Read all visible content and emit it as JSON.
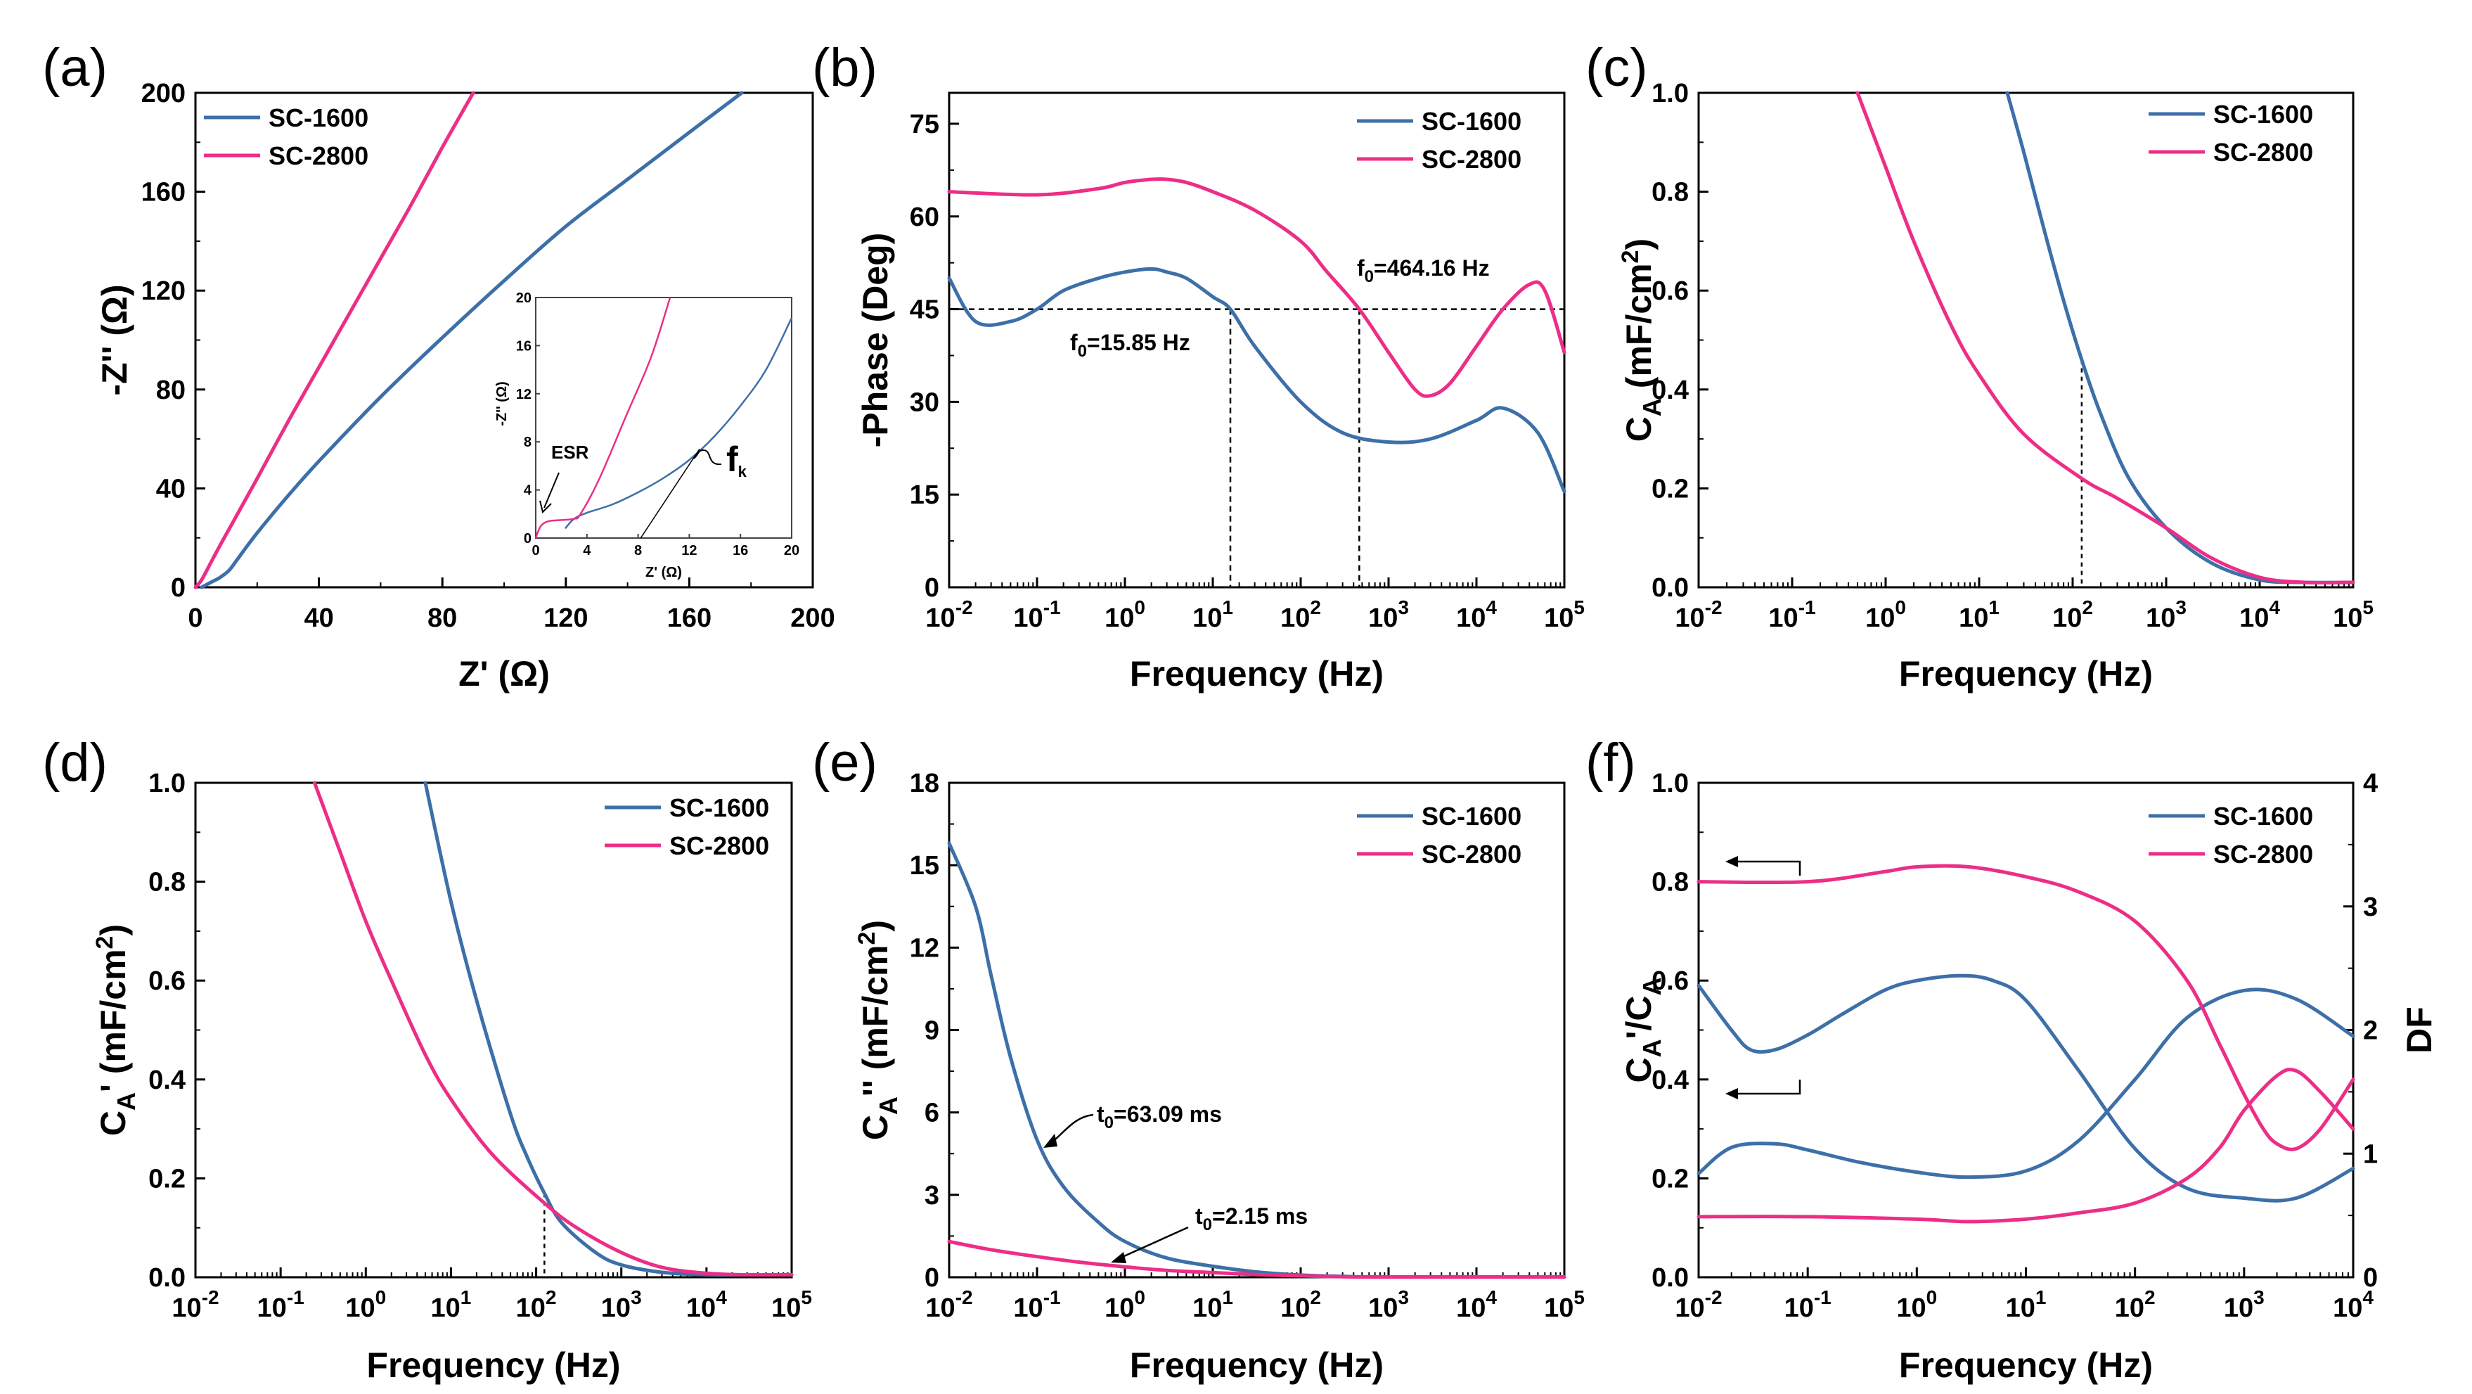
{
  "colors": {
    "SC-1600": "#3d6fa8",
    "SC-2800": "#ec2e86",
    "axis": "#000000",
    "guide": "#000000"
  },
  "chart_data": [
    {
      "panel": "(a)",
      "type": "line",
      "xlabel": "Z' (Ω)",
      "ylabel": "-Z'' (Ω)",
      "xlim": [
        0,
        200
      ],
      "ylim": [
        0,
        200
      ],
      "xticks": [
        "0",
        "40",
        "80",
        "120",
        "160",
        "200"
      ],
      "yticks": [
        "0",
        "40",
        "80",
        "120",
        "160",
        "200"
      ],
      "legend": "top-left",
      "series": [
        {
          "name": "SC-1600",
          "x": [
            2,
            5,
            8,
            11,
            14,
            20,
            30,
            40,
            60,
            80,
            100,
            120,
            140,
            160,
            177
          ],
          "y": [
            0,
            2,
            4,
            7,
            12,
            22,
            37,
            51,
            77,
            101,
            124,
            146,
            165,
            184,
            200
          ]
        },
        {
          "name": "SC-2800",
          "x": [
            0,
            2,
            5,
            8,
            12,
            20,
            30,
            40,
            50,
            60,
            70,
            80,
            90
          ],
          "y": [
            0,
            3,
            10,
            17,
            26,
            44,
            67,
            89,
            111,
            133,
            155,
            178,
            200
          ]
        }
      ],
      "inset": {
        "xlabel": "Z' (Ω)",
        "ylabel": "-Z'' (Ω)",
        "xlim": [
          0,
          20
        ],
        "ylim": [
          0,
          20
        ],
        "xticks": [
          "0",
          "4",
          "8",
          "12",
          "16",
          "20"
        ],
        "yticks": [
          "0",
          "4",
          "8",
          "12",
          "16",
          "20"
        ],
        "annotations": [
          "ESR",
          "f"
        ],
        "annotation_sub": "k",
        "series": [
          {
            "name": "SC-1600",
            "x": [
              2.3,
              3,
              4,
              6,
              8,
              10,
              12,
              14,
              16,
              18,
              20
            ],
            "y": [
              0.8,
              1.6,
              2.1,
              2.8,
              3.8,
              5,
              6.5,
              8.5,
              11,
              14,
              18.3
            ]
          },
          {
            "name": "SC-2800",
            "x": [
              0,
              0.4,
              1,
              2,
              3,
              3.5,
              5,
              7,
              9,
              10.5
            ],
            "y": [
              0,
              1,
              1.4,
              1.5,
              1.6,
              2,
              5,
              10,
              15,
              20
            ]
          }
        ]
      }
    },
    {
      "panel": "(b)",
      "type": "line",
      "xlabel": "Frequency (Hz)",
      "ylabel": "-Phase (Deg)",
      "xscale": "log",
      "xlim": [
        0.01,
        100000
      ],
      "ylim": [
        0,
        80
      ],
      "yticks": [
        "0",
        "15",
        "30",
        "45",
        "60",
        "75"
      ],
      "xticks_exp": [
        "-2",
        "-1",
        "0",
        "1",
        "2",
        "3",
        "4",
        "5"
      ],
      "legend": "top-right",
      "annotations": [
        {
          "main": "f",
          "sub": "0",
          "rest": "=15.85 Hz",
          "x": 15.85,
          "y": 45
        },
        {
          "main": "f",
          "sub": "0",
          "rest": "=464.16 Hz",
          "x": 464.16,
          "y": 45
        }
      ],
      "series": [
        {
          "name": "SC-1600",
          "x": [
            0.01,
            0.02,
            0.05,
            0.1,
            0.2,
            0.5,
            1,
            2,
            3,
            5,
            10,
            15.85,
            30,
            100,
            300,
            1000,
            3000,
            10000,
            20000,
            50000,
            100000
          ],
          "y": [
            50,
            43,
            43,
            45,
            48,
            50,
            51,
            51.5,
            51,
            50,
            47,
            45,
            39,
            30,
            25,
            23.5,
            24,
            27,
            29,
            25,
            15.5
          ]
        },
        {
          "name": "SC-2800",
          "x": [
            0.01,
            0.1,
            0.5,
            1,
            2,
            3,
            5,
            10,
            30,
            100,
            200,
            464.16,
            1000,
            2000,
            3000,
            5000,
            10000,
            20000,
            40000,
            60000,
            100000
          ],
          "y": [
            64,
            63.5,
            64.5,
            65.5,
            66,
            66,
            65.5,
            64,
            61,
            56,
            51,
            45,
            38,
            32,
            31,
            33,
            39,
            45,
            49,
            48,
            38
          ]
        }
      ]
    },
    {
      "panel": "(c)",
      "type": "line",
      "xlabel": "Frequency (Hz)",
      "ylabel": "C",
      "ylabel_sub": "A",
      "ylabel_rest": " (mF/cm",
      "ylabel_sup": "2",
      "ylabel_close": ")",
      "xscale": "log",
      "xlim": [
        0.01,
        100000
      ],
      "ylim": [
        0,
        1
      ],
      "yticks": [
        "0.0",
        "0.2",
        "0.4",
        "0.6",
        "0.8",
        "1.0"
      ],
      "xticks_exp": [
        "-2",
        "-1",
        "0",
        "1",
        "2",
        "3",
        "4",
        "5"
      ],
      "legend": "top-right",
      "guide_x": 125,
      "series": [
        {
          "name": "SC-1600",
          "x": [
            20,
            30,
            50,
            80,
            125,
            200,
            400,
            1000,
            3000,
            10000,
            30000,
            100000
          ],
          "y": [
            1,
            0.88,
            0.72,
            0.58,
            0.46,
            0.35,
            0.22,
            0.12,
            0.05,
            0.015,
            0.01,
            0.01
          ]
        },
        {
          "name": "SC-2800",
          "x": [
            0.5,
            1,
            2,
            5,
            10,
            30,
            125,
            300,
            1000,
            3000,
            10000,
            30000,
            100000
          ],
          "y": [
            1,
            0.85,
            0.7,
            0.53,
            0.43,
            0.31,
            0.22,
            0.18,
            0.12,
            0.06,
            0.02,
            0.01,
            0.01
          ]
        }
      ]
    },
    {
      "panel": "(d)",
      "type": "line",
      "xlabel": "Frequency (Hz)",
      "ylabel": "C",
      "ylabel_sub": "A",
      "ylabel_rest": "' (mF/cm",
      "ylabel_sup": "2",
      "ylabel_close": ")",
      "xscale": "log",
      "xlim": [
        0.01,
        100000
      ],
      "ylim": [
        0,
        1
      ],
      "yticks": [
        "0.0",
        "0.2",
        "0.4",
        "0.6",
        "0.8",
        "1.0"
      ],
      "xticks_exp": [
        "-2",
        "-1",
        "0",
        "1",
        "2",
        "3",
        "4",
        "5"
      ],
      "legend": "top-right",
      "guide_x": 125,
      "series": [
        {
          "name": "SC-1600",
          "x": [
            5,
            10,
            20,
            50,
            80,
            125,
            200,
            500,
            1000,
            3000,
            10000,
            30000,
            100000
          ],
          "y": [
            1,
            0.76,
            0.56,
            0.33,
            0.24,
            0.17,
            0.11,
            0.05,
            0.025,
            0.01,
            0.005,
            0.005,
            0.005
          ]
        },
        {
          "name": "SC-2800",
          "x": [
            0.25,
            0.5,
            1,
            2,
            5,
            10,
            30,
            125,
            300,
            1000,
            3000,
            10000,
            30000,
            100000
          ],
          "y": [
            1,
            0.86,
            0.72,
            0.6,
            0.45,
            0.36,
            0.25,
            0.15,
            0.1,
            0.05,
            0.02,
            0.008,
            0.005,
            0.005
          ]
        }
      ]
    },
    {
      "panel": "(e)",
      "type": "line",
      "xlabel": "Frequency (Hz)",
      "ylabel": "C",
      "ylabel_sub": "A",
      "ylabel_rest": "'' (mF/cm",
      "ylabel_sup": "2",
      "ylabel_close": ")",
      "xscale": "log",
      "xlim": [
        0.01,
        100000
      ],
      "ylim": [
        0,
        18
      ],
      "yticks": [
        "0",
        "3",
        "6",
        "9",
        "12",
        "15",
        "18"
      ],
      "xticks_exp": [
        "-2",
        "-1",
        "0",
        "1",
        "2",
        "3",
        "4",
        "5"
      ],
      "legend": "top-right",
      "annotations": [
        {
          "main": "t",
          "sub": "0",
          "rest": "=63.09 ms",
          "x": 0.1,
          "y": 5
        },
        {
          "main": "t",
          "sub": "0",
          "rest": "=2.15 ms",
          "x": 0.4,
          "y": 0.5
        }
      ],
      "series": [
        {
          "name": "SC-1600",
          "x": [
            0.01,
            0.02,
            0.03,
            0.05,
            0.1,
            0.2,
            0.5,
            1,
            3,
            10,
            30,
            100,
            300,
            1000,
            100000
          ],
          "y": [
            15.8,
            13.5,
            11,
            8,
            5,
            3.3,
            2,
            1.3,
            0.7,
            0.4,
            0.2,
            0.08,
            0.03,
            0.01,
            0.01
          ]
        },
        {
          "name": "SC-2800",
          "x": [
            0.01,
            0.03,
            0.1,
            0.3,
            1,
            3,
            10,
            30,
            100,
            300,
            1000,
            100000
          ],
          "y": [
            1.3,
            1,
            0.75,
            0.55,
            0.38,
            0.25,
            0.17,
            0.1,
            0.05,
            0.02,
            0.01,
            0.01
          ]
        }
      ]
    },
    {
      "panel": "(f)",
      "type": "line",
      "xlabel": "Frequency (Hz)",
      "ylabel": "C",
      "ylabel_sub": "A",
      "ylabel_mid": "'/C",
      "ylabel_sub2": "A",
      "y2label": "DF",
      "xscale": "log",
      "xlim": [
        0.01,
        10000
      ],
      "ylim": [
        0,
        1
      ],
      "y2lim": [
        0,
        4
      ],
      "yticks": [
        "0.0",
        "0.2",
        "0.4",
        "0.6",
        "0.8",
        "1.0"
      ],
      "y2ticks": [
        "0",
        "1",
        "2",
        "3",
        "4"
      ],
      "xticks_exp": [
        "-2",
        "-1",
        "0",
        "1",
        "2",
        "3",
        "4"
      ],
      "legend": "top-right",
      "series": [
        {
          "name": "SC-1600",
          "axis": "left",
          "x": [
            0.01,
            0.02,
            0.03,
            0.05,
            0.1,
            0.2,
            0.5,
            1,
            2.5,
            5,
            10,
            30,
            100,
            300,
            1000,
            3000,
            10000
          ],
          "y": [
            0.59,
            0.5,
            0.46,
            0.46,
            0.49,
            0.53,
            0.58,
            0.6,
            0.61,
            0.6,
            0.56,
            0.42,
            0.26,
            0.18,
            0.16,
            0.16,
            0.22
          ]
        },
        {
          "name": "SC-1600",
          "axis": "right",
          "x": [
            0.01,
            0.02,
            0.05,
            0.1,
            0.3,
            1,
            3,
            10,
            30,
            100,
            300,
            1000,
            3000,
            10000
          ],
          "y": [
            0.84,
            1.05,
            1.08,
            1.03,
            0.93,
            0.85,
            0.81,
            0.86,
            1.1,
            1.6,
            2.1,
            2.32,
            2.25,
            1.95
          ]
        },
        {
          "name": "SC-2800",
          "axis": "left",
          "x": [
            0.01,
            0.1,
            0.5,
            1,
            3,
            10,
            30,
            100,
            300,
            600,
            1000,
            1500,
            2000,
            3000,
            5000,
            10000
          ],
          "y": [
            0.8,
            0.8,
            0.82,
            0.83,
            0.83,
            0.81,
            0.78,
            0.72,
            0.6,
            0.47,
            0.37,
            0.3,
            0.27,
            0.26,
            0.3,
            0.4
          ]
        },
        {
          "name": "SC-2800",
          "axis": "right",
          "x": [
            0.01,
            0.1,
            1,
            3,
            10,
            30,
            100,
            300,
            600,
            1000,
            2000,
            3000,
            5000,
            10000
          ],
          "y": [
            0.49,
            0.49,
            0.47,
            0.45,
            0.47,
            0.52,
            0.6,
            0.8,
            1.05,
            1.35,
            1.63,
            1.67,
            1.5,
            1.2
          ]
        }
      ],
      "arrows": [
        {
          "y": 0.85,
          "direction": "left"
        },
        {
          "y": 0.45,
          "direction": "left"
        }
      ]
    }
  ]
}
